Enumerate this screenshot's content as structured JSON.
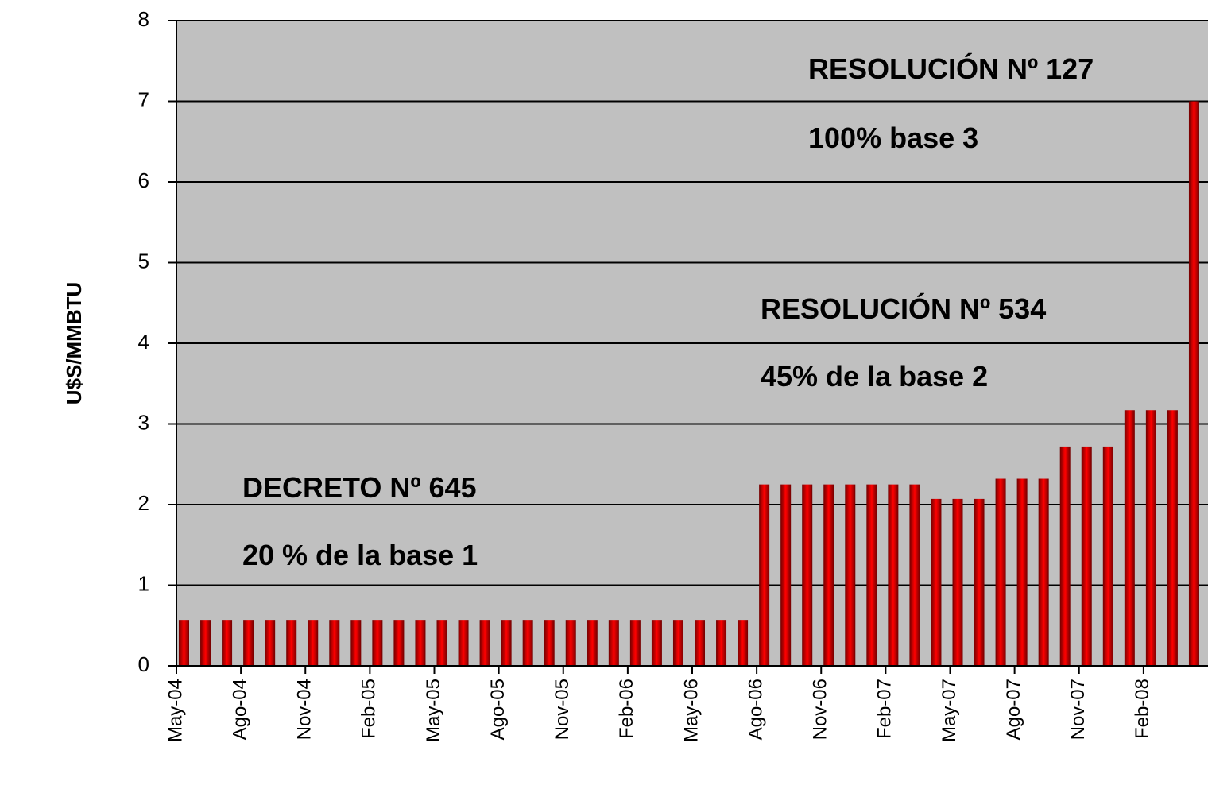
{
  "chart_data": {
    "type": "bar",
    "ylabel": "U$S/MMBTU",
    "categories": [
      "May-04",
      null,
      null,
      "Ago-04",
      null,
      null,
      "Nov-04",
      null,
      null,
      "Feb-05",
      null,
      null,
      "May-05",
      null,
      null,
      "Ago-05",
      null,
      null,
      "Nov-05",
      null,
      null,
      "Feb-06",
      null,
      null,
      "May-06",
      null,
      null,
      "Ago-06",
      null,
      null,
      "Nov-06",
      null,
      null,
      "Feb-07",
      null,
      null,
      "May-07",
      null,
      null,
      "Ago-07",
      null,
      null,
      "Nov-07",
      null,
      null,
      "Feb-08",
      null,
      null
    ],
    "values": [
      0.57,
      0.57,
      0.57,
      0.57,
      0.57,
      0.57,
      0.57,
      0.57,
      0.57,
      0.57,
      0.57,
      0.57,
      0.57,
      0.57,
      0.57,
      0.57,
      0.57,
      0.57,
      0.57,
      0.57,
      0.57,
      0.57,
      0.57,
      0.57,
      0.57,
      0.57,
      0.57,
      2.25,
      2.25,
      2.25,
      2.25,
      2.25,
      2.25,
      2.25,
      2.25,
      2.07,
      2.07,
      2.07,
      2.32,
      2.32,
      2.32,
      2.72,
      2.72,
      2.72,
      3.17,
      3.17,
      3.17,
      7
    ],
    "color": "#ff0000",
    "ylim": [
      0,
      8
    ],
    "yticks": [
      0,
      1,
      2,
      3,
      4,
      5,
      6,
      7,
      8
    ],
    "grid": true,
    "annotations": [
      "RESOLUCIÓN Nº 127",
      "100% base 3",
      "RESOLUCIÓN Nº 534",
      "45% de la base 2",
      "DECRETO Nº 645",
      "20 % de la base 1"
    ]
  }
}
